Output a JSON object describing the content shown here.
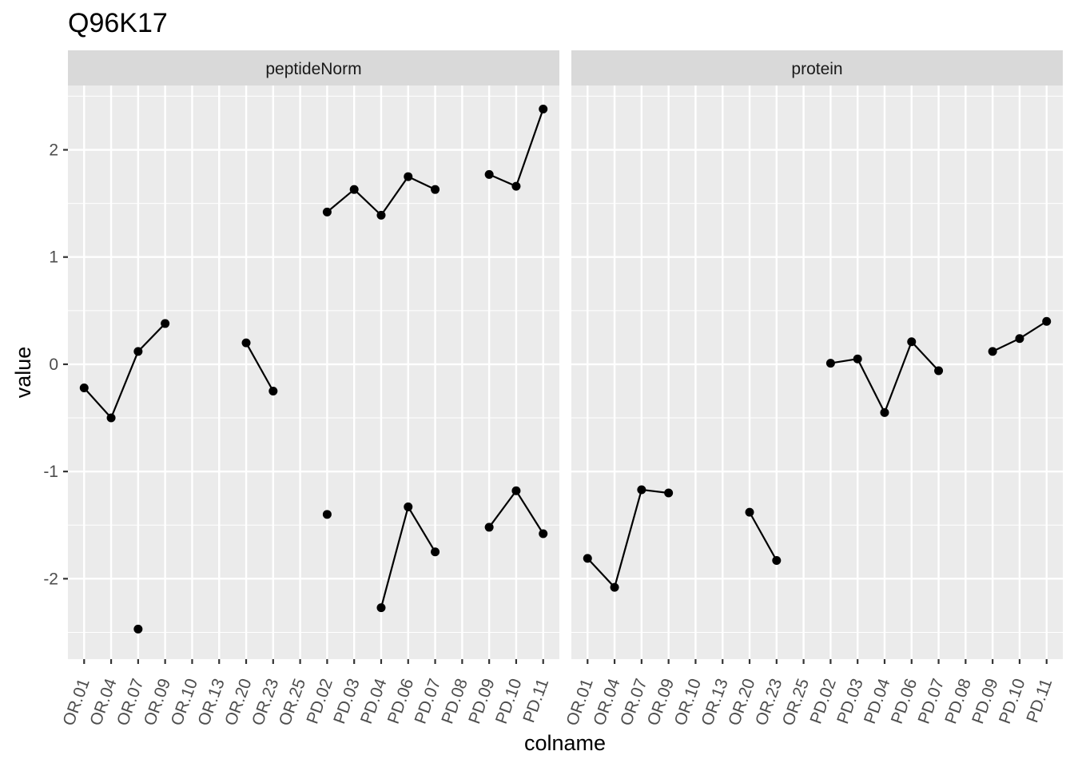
{
  "title": "Q96K17",
  "xlabel": "colname",
  "ylabel": "value",
  "chart_data": {
    "type": "line",
    "title": "Q96K17",
    "xlabel": "colname",
    "ylabel": "value",
    "categories": [
      "OR.01",
      "OR.04",
      "OR.07",
      "OR.09",
      "OR.10",
      "OR.13",
      "OR.20",
      "OR.23",
      "OR.25",
      "PD.02",
      "PD.03",
      "PD.04",
      "PD.06",
      "PD.07",
      "PD.08",
      "PD.09",
      "PD.10",
      "PD.11"
    ],
    "ylim": [
      -2.75,
      2.6
    ],
    "yticks": [
      -2,
      -1,
      0,
      1,
      2
    ],
    "grid": true,
    "panels": [
      {
        "name": "peptideNorm",
        "series": [
          {
            "values": [
              -0.22,
              -0.5,
              0.12,
              0.38,
              null,
              null,
              0.2,
              -0.25,
              null,
              1.42,
              1.63,
              1.39,
              1.75,
              1.63,
              null,
              1.77,
              1.66,
              2.38
            ]
          },
          {
            "values": [
              null,
              null,
              -2.47,
              null,
              null,
              null,
              null,
              null,
              null,
              -1.4,
              null,
              -2.27,
              -1.33,
              -1.75,
              null,
              -1.52,
              -1.18,
              -1.58
            ]
          }
        ]
      },
      {
        "name": "protein",
        "series": [
          {
            "values": [
              -1.81,
              -2.08,
              -1.17,
              -1.2,
              null,
              null,
              -1.38,
              -1.83,
              null,
              0.01,
              0.05,
              -0.45,
              0.21,
              -0.06,
              null,
              0.12,
              0.24,
              0.4
            ]
          }
        ]
      }
    ]
  }
}
